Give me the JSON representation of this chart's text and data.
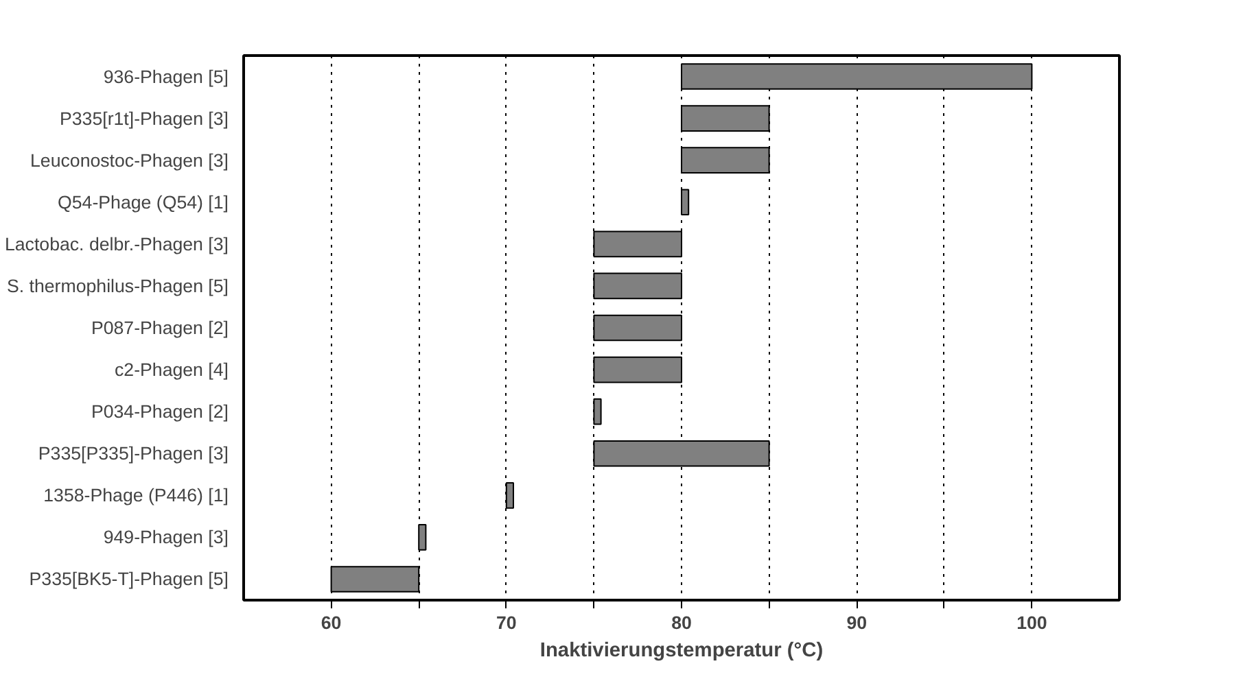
{
  "chart_data": {
    "type": "bar",
    "orientation": "horizontal",
    "xlabel": "Inaktivierungstemperatur (°C)",
    "categories": [
      "936-Phagen [5]",
      "P335[r1t]-Phagen [3]",
      "Leuconostoc-Phagen [3]",
      "Q54-Phage (Q54) [1]",
      "Lactobac. delbr.-Phagen [3]",
      "S. thermophilus-Phagen [5]",
      "P087-Phagen [2]",
      "c2-Phagen [4]",
      "P034-Phagen [2]",
      "P335[P335]-Phagen [3]",
      "1358-Phage (P446) [1]",
      "949-Phagen [3]",
      "P335[BK5-T]-Phagen [5]"
    ],
    "base": [
      80,
      80,
      80,
      80,
      75,
      75,
      75,
      75,
      75,
      75,
      70,
      65,
      60
    ],
    "values": [
      20,
      5,
      5,
      0.4,
      5,
      5,
      5,
      5,
      0.4,
      10,
      0.4,
      0.4,
      5
    ],
    "color": "#808080",
    "xlim": [
      55,
      105
    ],
    "xticks": [
      60,
      {
        "value": 65,
        "label": null
      },
      70,
      {
        "value": 75,
        "label": null
      },
      80,
      {
        "value": 85,
        "label": null
      },
      90,
      {
        "value": 95,
        "label": null
      },
      100
    ],
    "grid": "x",
    "line_style": "dotted"
  }
}
